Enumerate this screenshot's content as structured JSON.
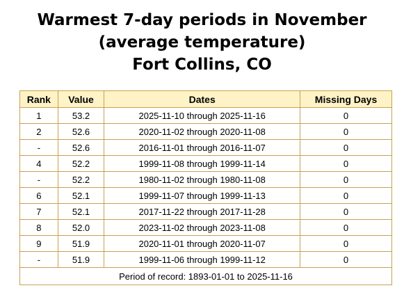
{
  "title": {
    "line1": "Warmest 7-day periods in November",
    "line2": "(average temperature)",
    "line3": "Fort Collins, CO"
  },
  "table": {
    "headers": {
      "rank": "Rank",
      "value": "Value",
      "dates": "Dates",
      "missing": "Missing Days"
    },
    "rows": [
      {
        "rank": "1",
        "value": "53.2",
        "dates": "2025-11-10 through 2025-11-16",
        "missing": "0"
      },
      {
        "rank": "2",
        "value": "52.6",
        "dates": "2020-11-02 through 2020-11-08",
        "missing": "0"
      },
      {
        "rank": "-",
        "value": "52.6",
        "dates": "2016-11-01 through 2016-11-07",
        "missing": "0"
      },
      {
        "rank": "4",
        "value": "52.2",
        "dates": "1999-11-08 through 1999-11-14",
        "missing": "0"
      },
      {
        "rank": "-",
        "value": "52.2",
        "dates": "1980-11-02 through 1980-11-08",
        "missing": "0"
      },
      {
        "rank": "6",
        "value": "52.1",
        "dates": "1999-11-07 through 1999-11-13",
        "missing": "0"
      },
      {
        "rank": "7",
        "value": "52.1",
        "dates": "2017-11-22 through 2017-11-28",
        "missing": "0"
      },
      {
        "rank": "8",
        "value": "52.0",
        "dates": "2023-11-02 through 2023-11-08",
        "missing": "0"
      },
      {
        "rank": "9",
        "value": "51.9",
        "dates": "2020-11-01 through 2020-11-07",
        "missing": "0"
      },
      {
        "rank": "-",
        "value": "51.9",
        "dates": "1999-11-06 through 1999-11-12",
        "missing": "0"
      }
    ],
    "footer": "Period of record: 1893-01-01 to 2025-11-16"
  },
  "colors": {
    "header_background": "#fdf3c6",
    "border": "#c8a050"
  }
}
